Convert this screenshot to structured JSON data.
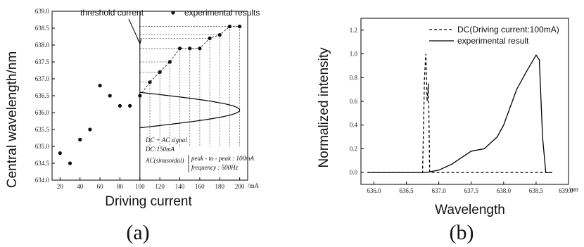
{
  "chart_data": [
    {
      "type": "scatter",
      "caption": "(a)",
      "xlabel": "Driving current",
      "ylabel": "Central wavelength/nm",
      "x_unit": "/mA",
      "xlim": [
        12,
        208
      ],
      "ylim": [
        634.0,
        639.0
      ],
      "x_ticks": [
        20,
        40,
        60,
        80,
        100,
        120,
        140,
        160,
        180,
        200
      ],
      "y_ticks": [
        634.0,
        634.5,
        635.0,
        635.5,
        636.0,
        636.5,
        637.0,
        637.5,
        638.0,
        638.5,
        639.0
      ],
      "x_tick_labels": [
        "20",
        "40",
        "60",
        "80",
        "100",
        "120",
        "140",
        "160",
        "180",
        "200"
      ],
      "y_tick_labels": [
        "634.0",
        "634.5",
        "635.0",
        "635.5",
        "636.0",
        "636.5",
        "637.0",
        "637.5",
        "638.0",
        "638.5",
        "639.0"
      ],
      "series": [
        {
          "name": "experimental results",
          "points": [
            {
              "x": 20,
              "y": 634.8
            },
            {
              "x": 30,
              "y": 634.5
            },
            {
              "x": 40,
              "y": 635.2
            },
            {
              "x": 50,
              "y": 635.5
            },
            {
              "x": 60,
              "y": 636.8
            },
            {
              "x": 70,
              "y": 636.5
            },
            {
              "x": 80,
              "y": 636.2
            },
            {
              "x": 90,
              "y": 636.2
            },
            {
              "x": 100,
              "y": 636.5
            },
            {
              "x": 110,
              "y": 636.9
            },
            {
              "x": 120,
              "y": 637.2
            },
            {
              "x": 130,
              "y": 637.5
            },
            {
              "x": 140,
              "y": 637.9
            },
            {
              "x": 150,
              "y": 637.9
            },
            {
              "x": 160,
              "y": 637.9
            },
            {
              "x": 170,
              "y": 638.2
            },
            {
              "x": 180,
              "y": 638.3
            },
            {
              "x": 190,
              "y": 638.55
            },
            {
              "x": 200,
              "y": 638.55
            }
          ]
        }
      ],
      "threshold_current": 100,
      "ac_signal": {
        "center_current": 150,
        "peak_to_peak": 100
      },
      "annotations": {
        "threshold_label": "threshold current",
        "signal_title": "DC + AC signal",
        "dc_line": "DC:150mA",
        "ac_label": "AC(sinusoidal)",
        "ac_peak": "peak - to - peak : 100mA",
        "ac_freq": "frequency : 500Hz"
      },
      "legend": {
        "position": "top-right"
      }
    },
    {
      "type": "line",
      "caption": "(b)",
      "xlabel": "Wavelength",
      "ylabel": "Normalized intensity",
      "x_unit": "/nm",
      "xlim": [
        635.8,
        639.0
      ],
      "ylim": [
        -0.1,
        1.3
      ],
      "x_ticks": [
        636.0,
        636.5,
        637.0,
        637.5,
        638.0,
        638.5,
        639.0
      ],
      "y_ticks": [
        0.0,
        0.2,
        0.4,
        0.6,
        0.8,
        1.0,
        1.2
      ],
      "x_tick_labels": [
        "636.0",
        "636.5",
        "637.0",
        "637.5",
        "638.0",
        "638.5",
        "639.0"
      ],
      "y_tick_labels": [
        "0.0",
        "0.2",
        "0.4",
        "0.6",
        "0.8",
        "1.0",
        "1.2"
      ],
      "series": [
        {
          "name": "DC(Driving current:100mA)",
          "style": "dashed",
          "points": [
            {
              "x": 635.9,
              "y": 0.0
            },
            {
              "x": 636.75,
              "y": 0.0
            },
            {
              "x": 636.78,
              "y": 0.8
            },
            {
              "x": 636.8,
              "y": 1.0
            },
            {
              "x": 636.82,
              "y": 0.6
            },
            {
              "x": 636.84,
              "y": 0.75
            },
            {
              "x": 636.86,
              "y": 0.0
            },
            {
              "x": 638.75,
              "y": 0.0
            }
          ]
        },
        {
          "name": "experimental result",
          "style": "solid",
          "points": [
            {
              "x": 635.9,
              "y": 0.0
            },
            {
              "x": 636.8,
              "y": 0.0
            },
            {
              "x": 637.0,
              "y": 0.02
            },
            {
              "x": 637.2,
              "y": 0.07
            },
            {
              "x": 637.5,
              "y": 0.18
            },
            {
              "x": 637.7,
              "y": 0.2
            },
            {
              "x": 637.9,
              "y": 0.3
            },
            {
              "x": 638.0,
              "y": 0.4
            },
            {
              "x": 638.2,
              "y": 0.7
            },
            {
              "x": 638.35,
              "y": 0.85
            },
            {
              "x": 638.5,
              "y": 0.99
            },
            {
              "x": 638.55,
              "y": 0.95
            },
            {
              "x": 638.6,
              "y": 0.3
            },
            {
              "x": 638.65,
              "y": 0.0
            },
            {
              "x": 638.75,
              "y": 0.0
            }
          ]
        }
      ],
      "legend": {
        "position": "top-right"
      }
    }
  ]
}
